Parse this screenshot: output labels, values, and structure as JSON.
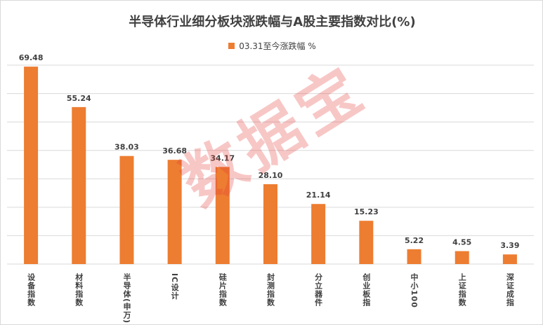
{
  "chart_data": {
    "type": "bar",
    "title": "半导体行业细分板块涨跌幅与A股主要指数对比(%)",
    "series": [
      {
        "name": "03.31至今涨跌幅  %",
        "color": "#ed7d31",
        "values": [
          69.48,
          55.24,
          38.03,
          36.68,
          34.17,
          28.1,
          21.14,
          15.23,
          5.22,
          4.55,
          3.39
        ]
      }
    ],
    "value_labels": [
      "69.48",
      "55.24",
      "38.03",
      "36.68",
      "34.17",
      "28.10",
      "21.14",
      "15.23",
      "5.22",
      "4.55",
      "3.39"
    ],
    "categories": [
      "设备指数",
      "材料指数",
      "半导体(申万)",
      "IC设计",
      "硅片指数",
      "封测指数",
      "分立器件",
      "创业板指",
      "中小100",
      "上证指数",
      "深证成指"
    ],
    "ylim": [
      0,
      70
    ],
    "gridlines": [
      10,
      20,
      30,
      40,
      50,
      60,
      70
    ],
    "grid": true,
    "legend_position": "top"
  },
  "watermark": "数据宝",
  "colors": {
    "bar": "#ed7d31",
    "grid": "#d9d9d9",
    "text": "#404040"
  }
}
